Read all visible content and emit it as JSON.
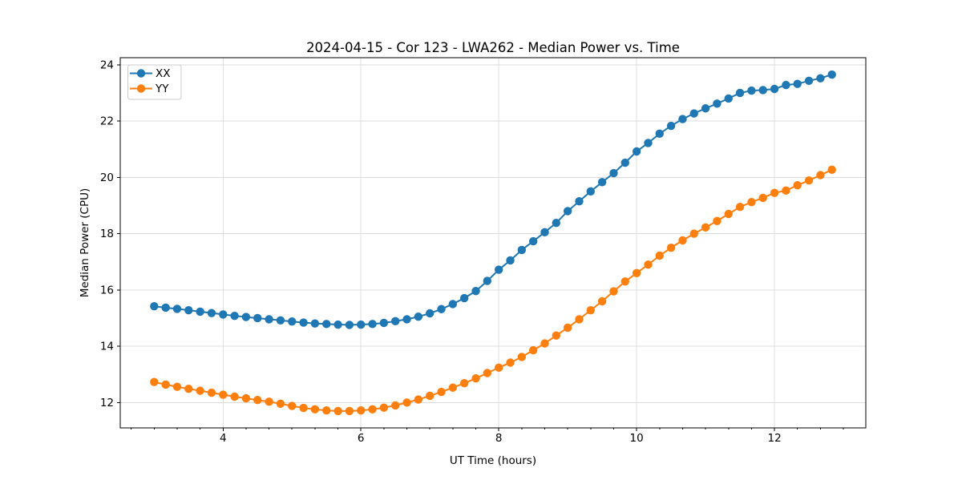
{
  "figure": {
    "background": "#ffffff"
  },
  "chart_data": {
    "type": "line",
    "title": "2024-04-15 - Cor 123 - LWA262 - Median Power vs. Time",
    "xlabel": "UT Time (hours)",
    "ylabel": "Median Power (CPU)",
    "xlim": [
      2.508,
      13.325
    ],
    "ylim": [
      11.1,
      24.25
    ],
    "x_major_ticks": [
      4,
      6,
      8,
      10,
      12
    ],
    "x_minor_tick_step": 0.33333,
    "y_major_ticks": [
      12,
      14,
      16,
      18,
      20,
      22,
      24
    ],
    "grid": true,
    "grid_color": "#dcdcdc",
    "legend_position": "upper-left",
    "x": [
      3.0,
      3.167,
      3.333,
      3.5,
      3.667,
      3.833,
      4.0,
      4.167,
      4.333,
      4.5,
      4.667,
      4.833,
      5.0,
      5.167,
      5.333,
      5.5,
      5.667,
      5.833,
      6.0,
      6.167,
      6.333,
      6.5,
      6.667,
      6.833,
      7.0,
      7.167,
      7.333,
      7.5,
      7.667,
      7.833,
      8.0,
      8.167,
      8.333,
      8.5,
      8.667,
      8.833,
      9.0,
      9.167,
      9.333,
      9.5,
      9.667,
      9.833,
      10.0,
      10.167,
      10.333,
      10.5,
      10.667,
      10.833,
      11.0,
      11.167,
      11.333,
      11.5,
      11.667,
      11.833,
      12.0,
      12.167,
      12.333,
      12.5,
      12.667,
      12.833
    ],
    "series": [
      {
        "name": "XX",
        "color": "#1f77b4",
        "values": [
          15.42,
          15.37,
          15.33,
          15.28,
          15.23,
          15.18,
          15.13,
          15.08,
          15.04,
          15.0,
          14.96,
          14.92,
          14.88,
          14.84,
          14.81,
          14.79,
          14.77,
          14.76,
          14.77,
          14.79,
          14.83,
          14.89,
          14.96,
          15.05,
          15.17,
          15.32,
          15.5,
          15.71,
          15.96,
          16.32,
          16.72,
          17.05,
          17.42,
          17.73,
          18.05,
          18.38,
          18.8,
          19.15,
          19.5,
          19.83,
          20.15,
          20.52,
          20.92,
          21.22,
          21.55,
          21.83,
          22.07,
          22.27,
          22.45,
          22.62,
          22.8,
          23.0,
          23.08,
          23.1,
          23.14,
          23.28,
          23.32,
          23.43,
          23.52,
          23.65
        ]
      },
      {
        "name": "YY",
        "color": "#ff7f0e",
        "values": [
          12.73,
          12.64,
          12.56,
          12.49,
          12.42,
          12.35,
          12.28,
          12.21,
          12.15,
          12.09,
          12.03,
          11.96,
          11.88,
          11.81,
          11.76,
          11.72,
          11.7,
          11.7,
          11.72,
          11.76,
          11.82,
          11.9,
          12.0,
          12.11,
          12.24,
          12.38,
          12.53,
          12.69,
          12.86,
          13.05,
          13.24,
          13.42,
          13.62,
          13.86,
          14.1,
          14.38,
          14.66,
          14.96,
          15.28,
          15.6,
          15.95,
          16.3,
          16.6,
          16.9,
          17.22,
          17.5,
          17.76,
          18.0,
          18.22,
          18.45,
          18.7,
          18.95,
          19.12,
          19.27,
          19.45,
          19.53,
          19.72,
          19.89,
          20.08,
          20.27
        ]
      }
    ]
  }
}
